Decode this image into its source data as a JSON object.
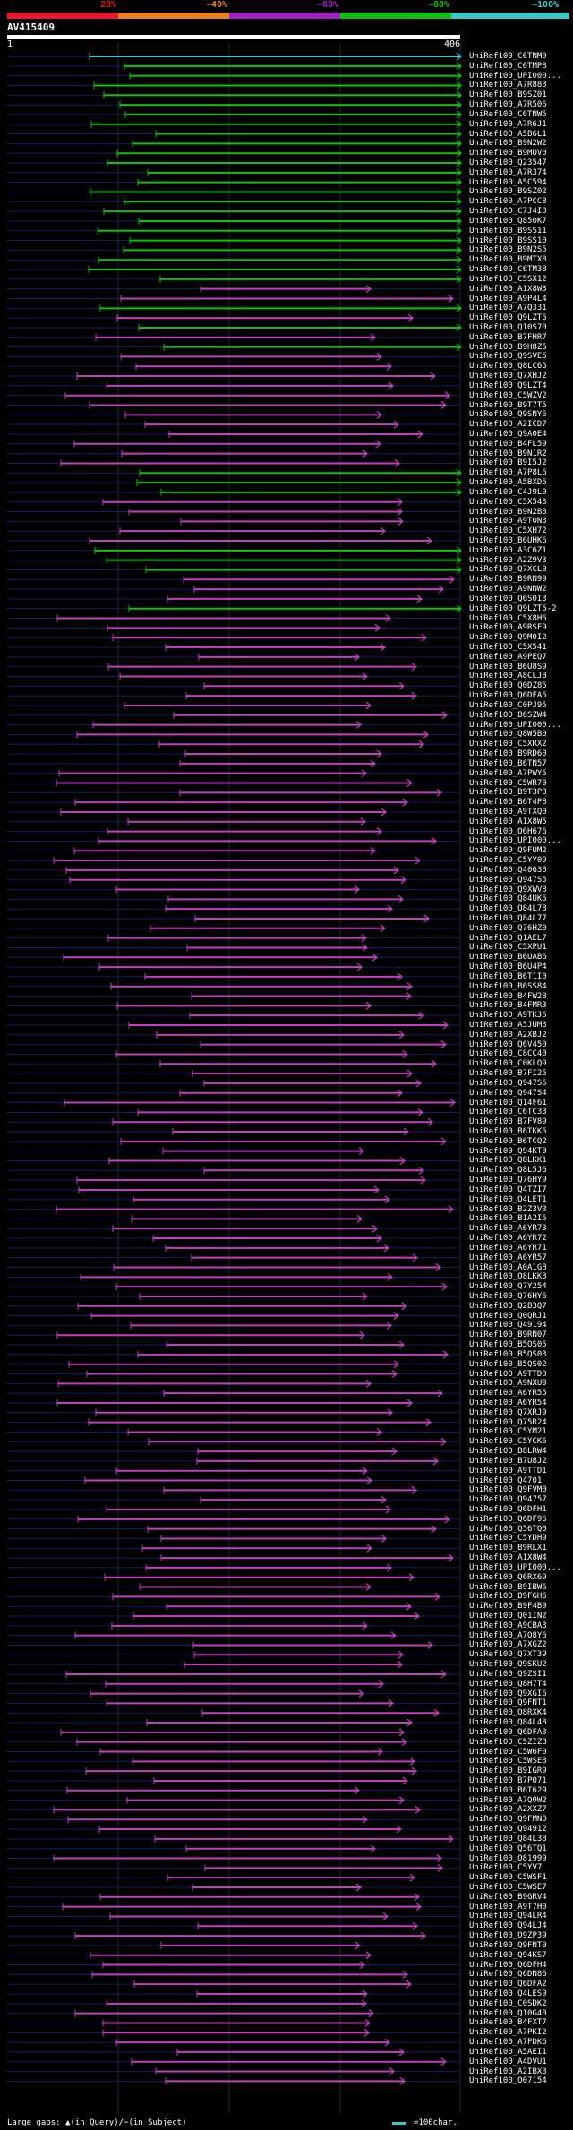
{
  "header": {
    "identity_labels": [
      "20%",
      "~40%",
      "~60%",
      "~80%",
      "~100%"
    ],
    "identity_colors": [
      "#e8182d",
      "#e8801d",
      "#a020c0",
      "#10c010",
      "#3cc7c7"
    ]
  },
  "query": {
    "name": "AV415409",
    "start": "1",
    "end": "406"
  },
  "hits": [
    "UniRef100_C6TNM0",
    "UniRef100_C6TMP8",
    "UniRef100_UPI000...",
    "UniRef100_A7R883",
    "UniRef100_B9SZ01",
    "UniRef100_A7R506",
    "UniRef100_C6TNW5",
    "UniRef100_A7R6J1",
    "UniRef100_A5B6L1",
    "UniRef100_B9N2W2",
    "UniRef100_B9MUV0",
    "UniRef100_Q23547",
    "UniRef100_A7R374",
    "UniRef100_A5C594",
    "UniRef100_B9SZ02",
    "UniRef100_A7PCC8",
    "UniRef100_C7J4I8",
    "UniRef100_Q850K7",
    "UniRef100_B9SS11",
    "UniRef100_B9SS10",
    "UniRef100_B9N2S5",
    "UniRef100_B9MTX8",
    "UniRef100_C6TM38",
    "UniRef100_C5SX12",
    "UniRef100_A1X8W3",
    "UniRef100_A9P4L4",
    "UniRef100_A7Q331",
    "UniRef100_Q9LZT5",
    "UniRef100_Q10S70",
    "UniRef100_B7FHR7",
    "UniRef100_B9H8Z5",
    "UniRef100_Q9SVE5",
    "UniRef100_Q8LC65",
    "UniRef100_Q7XHJ2",
    "UniRef100_Q9LZT4",
    "UniRef100_C5WZV2",
    "UniRef100_B9T7T5",
    "UniRef100_Q9SNY6",
    "UniRef100_A2ICD7",
    "UniRef100_Q9A0E4",
    "UniRef100_B4FL59",
    "UniRef100_B9N1R2",
    "UniRef100_B9I5J2",
    "UniRef100_A7P8L6",
    "UniRef100_A5BXD5",
    "UniRef100_C4J9L0",
    "UniRef100_C5X543",
    "UniRef100_B9N2B8",
    "UniRef100_A9T0N3",
    "UniRef100_C5XH72",
    "UniRef100_B6UHK6",
    "UniRef100_A3C6Z1",
    "UniRef100_A2Z9V3",
    "UniRef100_Q7XCL0",
    "UniRef100_B9RN99",
    "UniRef100_A9NNW2",
    "UniRef100_Q6S0I3",
    "UniRef100_Q9LZT5-2",
    "UniRef100_C5X8H6",
    "UniRef100_A9RSF9",
    "UniRef100_Q9M0I2",
    "UniRef100_C5X541",
    "UniRef100_A9PEQ7",
    "UniRef100_B6U8S9",
    "UniRef100_A8CLJ8",
    "UniRef100_Q0DZ85",
    "UniRef100_Q6DFA5",
    "UniRef100_C0PJ95",
    "UniRef100_B6SZW4",
    "UniRef100_UPI000...",
    "UniRef100_Q8W5B0",
    "UniRef100_C5XRX2",
    "UniRef100_B9RD60",
    "UniRef100_B6TN57",
    "UniRef100_A7PWY5",
    "UniRef100_C5WR70",
    "UniRef100_B9T3P8",
    "UniRef100_B6T4P8",
    "UniRef100_A9TXQ0",
    "UniRef100_A1X8W5",
    "UniRef100_Q6H676",
    "UniRef100_UPI000...",
    "UniRef100_Q9FUM2",
    "UniRef100_C5YY09",
    "UniRef100_Q40638",
    "UniRef100_Q947S5",
    "UniRef100_Q9XWV8",
    "UniRef100_Q84UK5",
    "UniRef100_Q84L78",
    "UniRef100_Q84L77",
    "UniRef100_Q76HZ0",
    "UniRef100_Q1AEL7",
    "UniRef100_C5XPU1",
    "UniRef100_B6UAB6",
    "UniRef100_B6U4P4",
    "UniRef100_B6T1I0",
    "UniRef100_B6SS84",
    "UniRef100_B4FW28",
    "UniRef100_B4FMR3",
    "UniRef100_A9TKJ5",
    "UniRef100_A5JUM3",
    "UniRef100_A2XBJ2",
    "UniRef100_Q6V450",
    "UniRef100_C8CC40",
    "UniRef100_C0KLQ9",
    "UniRef100_B7FI25",
    "UniRef100_Q947S6",
    "UniRef100_Q947S4",
    "UniRef100_Q14F61",
    "UniRef100_C6TC33",
    "UniRef100_B7FV89",
    "UniRef100_B6TKK5",
    "UniRef100_B6TCQ2",
    "UniRef100_Q94KT0",
    "UniRef100_Q8LKK1",
    "UniRef100_Q8L5J6",
    "UniRef100_Q76HY9",
    "UniRef100_Q4TZI7",
    "UniRef100_Q4LET1",
    "UniRef100_B2Z3V3",
    "UniRef100_B1A2I5",
    "UniRef100_A6YR73",
    "UniRef100_A6YR72",
    "UniRef100_A6YR71",
    "UniRef100_A6YR57",
    "UniRef100_A0A1G8",
    "UniRef100_Q8LKK3",
    "UniRef100_Q7Y254",
    "UniRef100_Q76HY6",
    "UniRef100_Q2B3Q7",
    "UniRef100_Q0QRJ1",
    "UniRef100_Q49194",
    "UniRef100_B9RN07",
    "UniRef100_B5QS05",
    "UniRef100_B5QS03",
    "UniRef100_B5QS02",
    "UniRef100_A9TTD0",
    "UniRef100_A9NXU9",
    "UniRef100_A6YR55",
    "UniRef100_A6YR54",
    "UniRef100_Q7XRJ9",
    "UniRef100_Q75R24",
    "UniRef100_C5YM21",
    "UniRef100_C5YCK6",
    "UniRef100_B8LRW4",
    "UniRef100_B7U8J2",
    "UniRef100_A9TTD1",
    "UniRef100_Q4701",
    "UniRef100_Q9FVM0",
    "UniRef100_Q94757",
    "UniRef100_Q6DFH1",
    "UniRef100_Q6DF96",
    "UniRef100_Q56TQ0",
    "UniRef100_C5YDH9",
    "UniRef100_B9RLX1",
    "UniRef100_A1X8W4",
    "UniRef100_UPI000...",
    "UniRef100_Q6RX69",
    "UniRef100_B9IBW6",
    "UniRef100_B9FGH6",
    "UniRef100_B9F4B9",
    "UniRef100_Q01IN2",
    "UniRef100_A9CBA3",
    "UniRef100_A7Q8Y6",
    "UniRef100_A7XGZ2",
    "UniRef100_Q7XT39",
    "UniRef100_Q9SKU2",
    "UniRef100_Q9ZSI1",
    "UniRef100_Q8H7T4",
    "UniRef100_Q9XGI6",
    "UniRef100_Q9FNT1",
    "UniRef100_Q8RXK4",
    "UniRef100_Q84L48",
    "UniRef100_Q6DFA3",
    "UniRef100_C5ZIZ8",
    "UniRef100_C5W6F0",
    "UniRef100_C5WSE8",
    "UniRef100_B9IGR9",
    "UniRef100_B7P071",
    "UniRef100_B6T629",
    "UniRef100_A7Q0W2",
    "UniRef100_A2XXZ7",
    "UniRef100_Q9FMN0",
    "UniRef100_Q94912",
    "UniRef100_Q84L38",
    "UniRef100_Q56TQ1",
    "UniRef100_Q81999",
    "UniRef100_C5YV7",
    "UniRef100_C5WSF1",
    "UniRef100_C5WSE7",
    "UniRef100_B9GRV4",
    "UniRef100_A9T7H0",
    "UniRef100_Q94LR4",
    "UniRef100_Q94LJ4",
    "UniRef100_Q9ZP39",
    "UniRef100_Q9FNT0",
    "UniRef100_Q94KS7",
    "UniRef100_Q6DFH4",
    "UniRef100_Q6DN86",
    "UniRef100_Q6DFA2",
    "UniRef100_Q4LES9",
    "UniRef100_C0SDK2",
    "UniRef100_Q10G40",
    "UniRef100_B4FXT7",
    "UniRef100_A7PKI2",
    "UniRef100_A7PDK6",
    "UniRef100_A5AEI1",
    "UniRef100_A4DVU1",
    "UniRef100_A2IBX3",
    "UniRef100_Q07154"
  ],
  "footer": {
    "gaps_text": "Large gaps: ▲(in Query)/−(in Subject)",
    "legend_text": "=100char."
  }
}
